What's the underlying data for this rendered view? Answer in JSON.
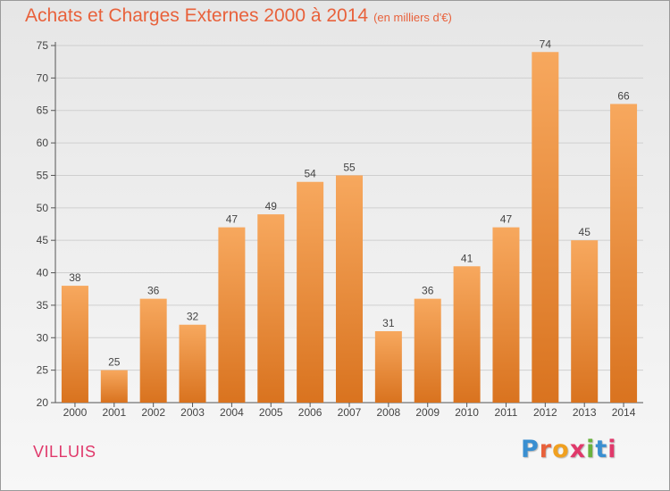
{
  "header": {
    "title": "Achats et Charges Externes 2000 à 2014",
    "subtitle": "(en milliers d'€)"
  },
  "footer": {
    "place": "VILLUIS",
    "logo": "Proxiti",
    "logo_colors": [
      "#3a8fd1",
      "#e8613b",
      "#f0a020",
      "#e0396b",
      "#6ab23e",
      "#3a8fd1",
      "#e0396b"
    ]
  },
  "colors": {
    "bar_top": "#f7a85e",
    "bar_bottom": "#d9731f",
    "title": "#e8613b",
    "axis": "#555555",
    "grid": "#cfcfcf"
  },
  "chart_data": {
    "type": "bar",
    "categories": [
      "2000",
      "2001",
      "2002",
      "2003",
      "2004",
      "2005",
      "2006",
      "2007",
      "2008",
      "2009",
      "2010",
      "2011",
      "2012",
      "2013",
      "2014"
    ],
    "values": [
      38,
      25,
      36,
      32,
      47,
      49,
      54,
      55,
      31,
      36,
      41,
      47,
      74,
      45,
      66
    ],
    "ylim": [
      20,
      75
    ],
    "yticks": [
      20,
      25,
      30,
      35,
      40,
      45,
      50,
      55,
      60,
      65,
      70,
      75
    ],
    "grid": true,
    "title": "Achats et Charges Externes 2000 à 2014",
    "xlabel": "",
    "ylabel": ""
  }
}
